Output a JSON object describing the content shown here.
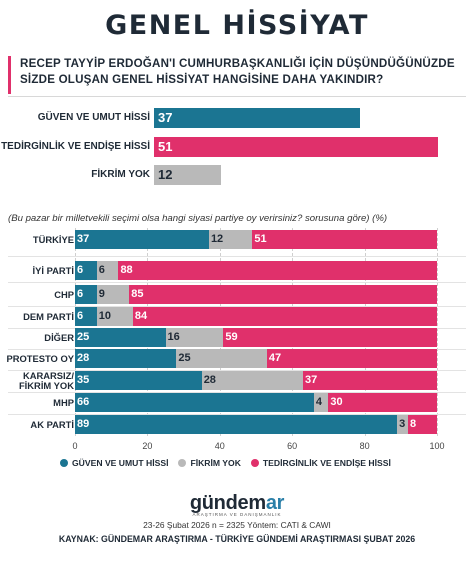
{
  "title": "GENEL HİSSİYAT",
  "question": {
    "line1": "RECEP TAYYİP ERDOĞAN'I CUMHURBAŞKANLIĞI İÇİN DÜŞÜNDÜĞÜNÜZDE",
    "line2": "SİZDE OLUŞAN GENEL HİSSİYAT HANGİSİNE DAHA YAKINDIR?"
  },
  "colors": {
    "guven": "#1b7592",
    "fikrim": "#b9b9b9",
    "tedirgin": "#e0306b"
  },
  "chart_data": [
    {
      "type": "bar",
      "categories": [
        "GÜVEN VE UMUT HİSSİ",
        "TEDİRGİNLİK VE ENDİŞE HİSSİ",
        "FİKRİM YOK"
      ],
      "values": [
        37,
        51,
        12
      ],
      "colors": [
        "#1b7592",
        "#e0306b",
        "#b9b9b9"
      ],
      "xlim": [
        0,
        100
      ]
    },
    {
      "type": "bar",
      "stacked": true,
      "note": "(Bu pazar bir milletvekili seçimi olsa hangi siyasi partiye oy verirsiniz? sorusuna göre) (%)",
      "categories": [
        "TÜRKİYE",
        "İYİ PARTİ",
        "CHP",
        "DEM PARTİ",
        "DİĞER",
        "PROTESTO OY",
        "KARARSIZ/\nFİKRİM YOK",
        "MHP",
        "AK PARTİ"
      ],
      "series": [
        {
          "name": "GÜVEN VE UMUT HİSSİ",
          "values": [
            37,
            6,
            6,
            6,
            25,
            28,
            35,
            66,
            89
          ]
        },
        {
          "name": "FİKRİM YOK",
          "values": [
            12,
            6,
            9,
            10,
            16,
            25,
            28,
            4,
            3
          ]
        },
        {
          "name": "TEDİRGİNLİK VE ENDİŞE HİSSİ",
          "values": [
            51,
            88,
            85,
            84,
            59,
            47,
            37,
            30,
            8
          ]
        }
      ],
      "xticks": [
        "0",
        "20",
        "40",
        "60",
        "80",
        "100"
      ],
      "xlim": [
        0,
        100
      ],
      "legend": "bottom"
    }
  ],
  "footer": {
    "logo_main": "gündem",
    "logo_accent": "ar",
    "logo_sub": "ARAŞTIRMA VE DANIŞMANLIK",
    "meta": "23-26 Şubat 2026  n = 2325  Yöntem: CATI & CAWI",
    "source": "KAYNAK: GÜNDEMAR ARAŞTIRMA - TÜRKİYE GÜNDEMİ ARAŞTIRMASI ŞUBAT 2026"
  }
}
